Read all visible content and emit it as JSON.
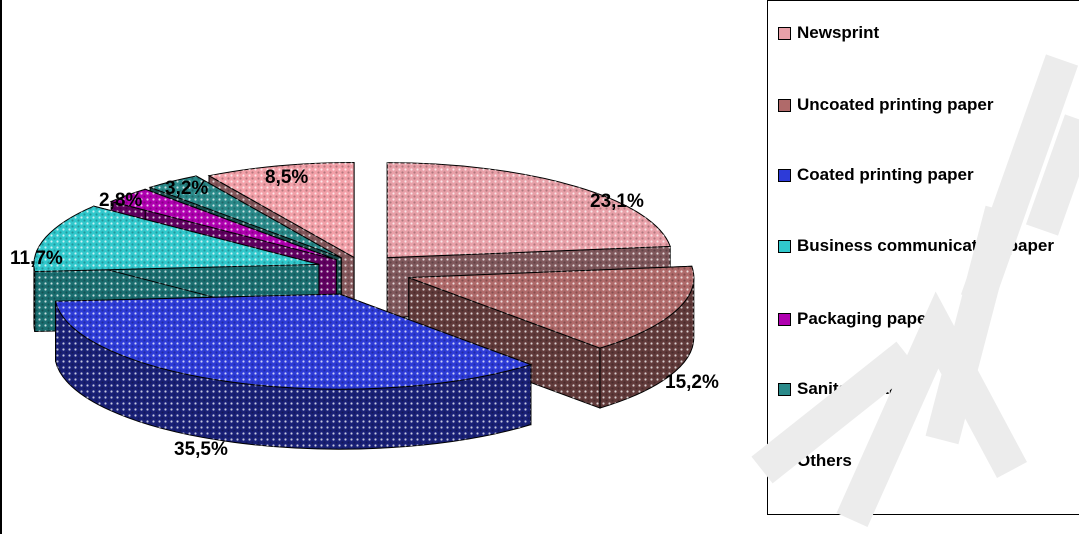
{
  "chart_data": {
    "type": "pie",
    "title": "",
    "exploded": true,
    "three_d": true,
    "legend_position": "right",
    "slices": [
      {
        "label": "Newsprint",
        "value": 23.1,
        "display": "23,1%",
        "color": "#e8a0a8"
      },
      {
        "label": "Uncoated printing paper",
        "value": 15.2,
        "display": "15,2%",
        "color": "#b06a6a"
      },
      {
        "label": "Coated printing paper",
        "value": 35.5,
        "display": "35,5%",
        "color": "#2d3bd8"
      },
      {
        "label": "Business communication paper",
        "value": 11.7,
        "display": "11,7%",
        "color": "#30c8cc"
      },
      {
        "label": "Packaging paper",
        "value": 2.8,
        "display": "2,8%",
        "color": "#b000b0"
      },
      {
        "label": "Sanitary paper",
        "value": 3.2,
        "display": "3,2%",
        "color": "#2a8a8a"
      },
      {
        "label": "Others",
        "value": 8.5,
        "display": "8,5%",
        "color": "#f2a0a8"
      }
    ]
  }
}
